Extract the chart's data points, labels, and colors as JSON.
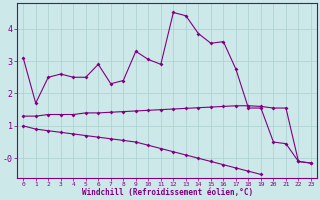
{
  "x": [
    0,
    1,
    2,
    3,
    4,
    5,
    6,
    7,
    8,
    9,
    10,
    11,
    12,
    13,
    14,
    15,
    16,
    17,
    18,
    19,
    20,
    21,
    22,
    23
  ],
  "line_upper": [
    3.1,
    1.7,
    2.5,
    2.6,
    2.5,
    2.5,
    2.9,
    2.3,
    2.4,
    3.3,
    3.05,
    2.9,
    4.5,
    4.4,
    3.85,
    3.55,
    3.6,
    2.75,
    1.55,
    1.55,
    0.5,
    0.45,
    -0.1,
    -0.15
  ],
  "line_flat": [
    1.3,
    1.3,
    1.35,
    1.35,
    1.35,
    1.4,
    1.4,
    1.42,
    1.44,
    1.46,
    1.48,
    1.5,
    1.52,
    1.54,
    1.56,
    1.58,
    1.6,
    1.62,
    1.62,
    1.6,
    1.55,
    1.55,
    -0.1,
    -0.15
  ],
  "line_down": [
    1.0,
    0.9,
    0.85,
    0.8,
    0.75,
    0.7,
    0.65,
    0.6,
    0.55,
    0.5,
    0.4,
    0.3,
    0.2,
    0.1,
    0.0,
    -0.1,
    -0.2,
    -0.3,
    -0.4,
    -0.5,
    null,
    null,
    null,
    null
  ],
  "color": "#800080",
  "bg_color": "#cce8e8",
  "grid_color": "#aacfcf",
  "ylim": [
    -0.6,
    4.8
  ],
  "xlim": [
    -0.5,
    23.5
  ],
  "xlabel": "Windchill (Refroidissement éolien,°C)",
  "ytick_vals": [
    0,
    1,
    2,
    3,
    4
  ],
  "ytick_labels": [
    "-0",
    "1",
    "2",
    "3",
    "4"
  ],
  "xticks": [
    0,
    1,
    2,
    3,
    4,
    5,
    6,
    7,
    8,
    9,
    10,
    11,
    12,
    13,
    14,
    15,
    16,
    17,
    18,
    19,
    20,
    21,
    22,
    23
  ]
}
